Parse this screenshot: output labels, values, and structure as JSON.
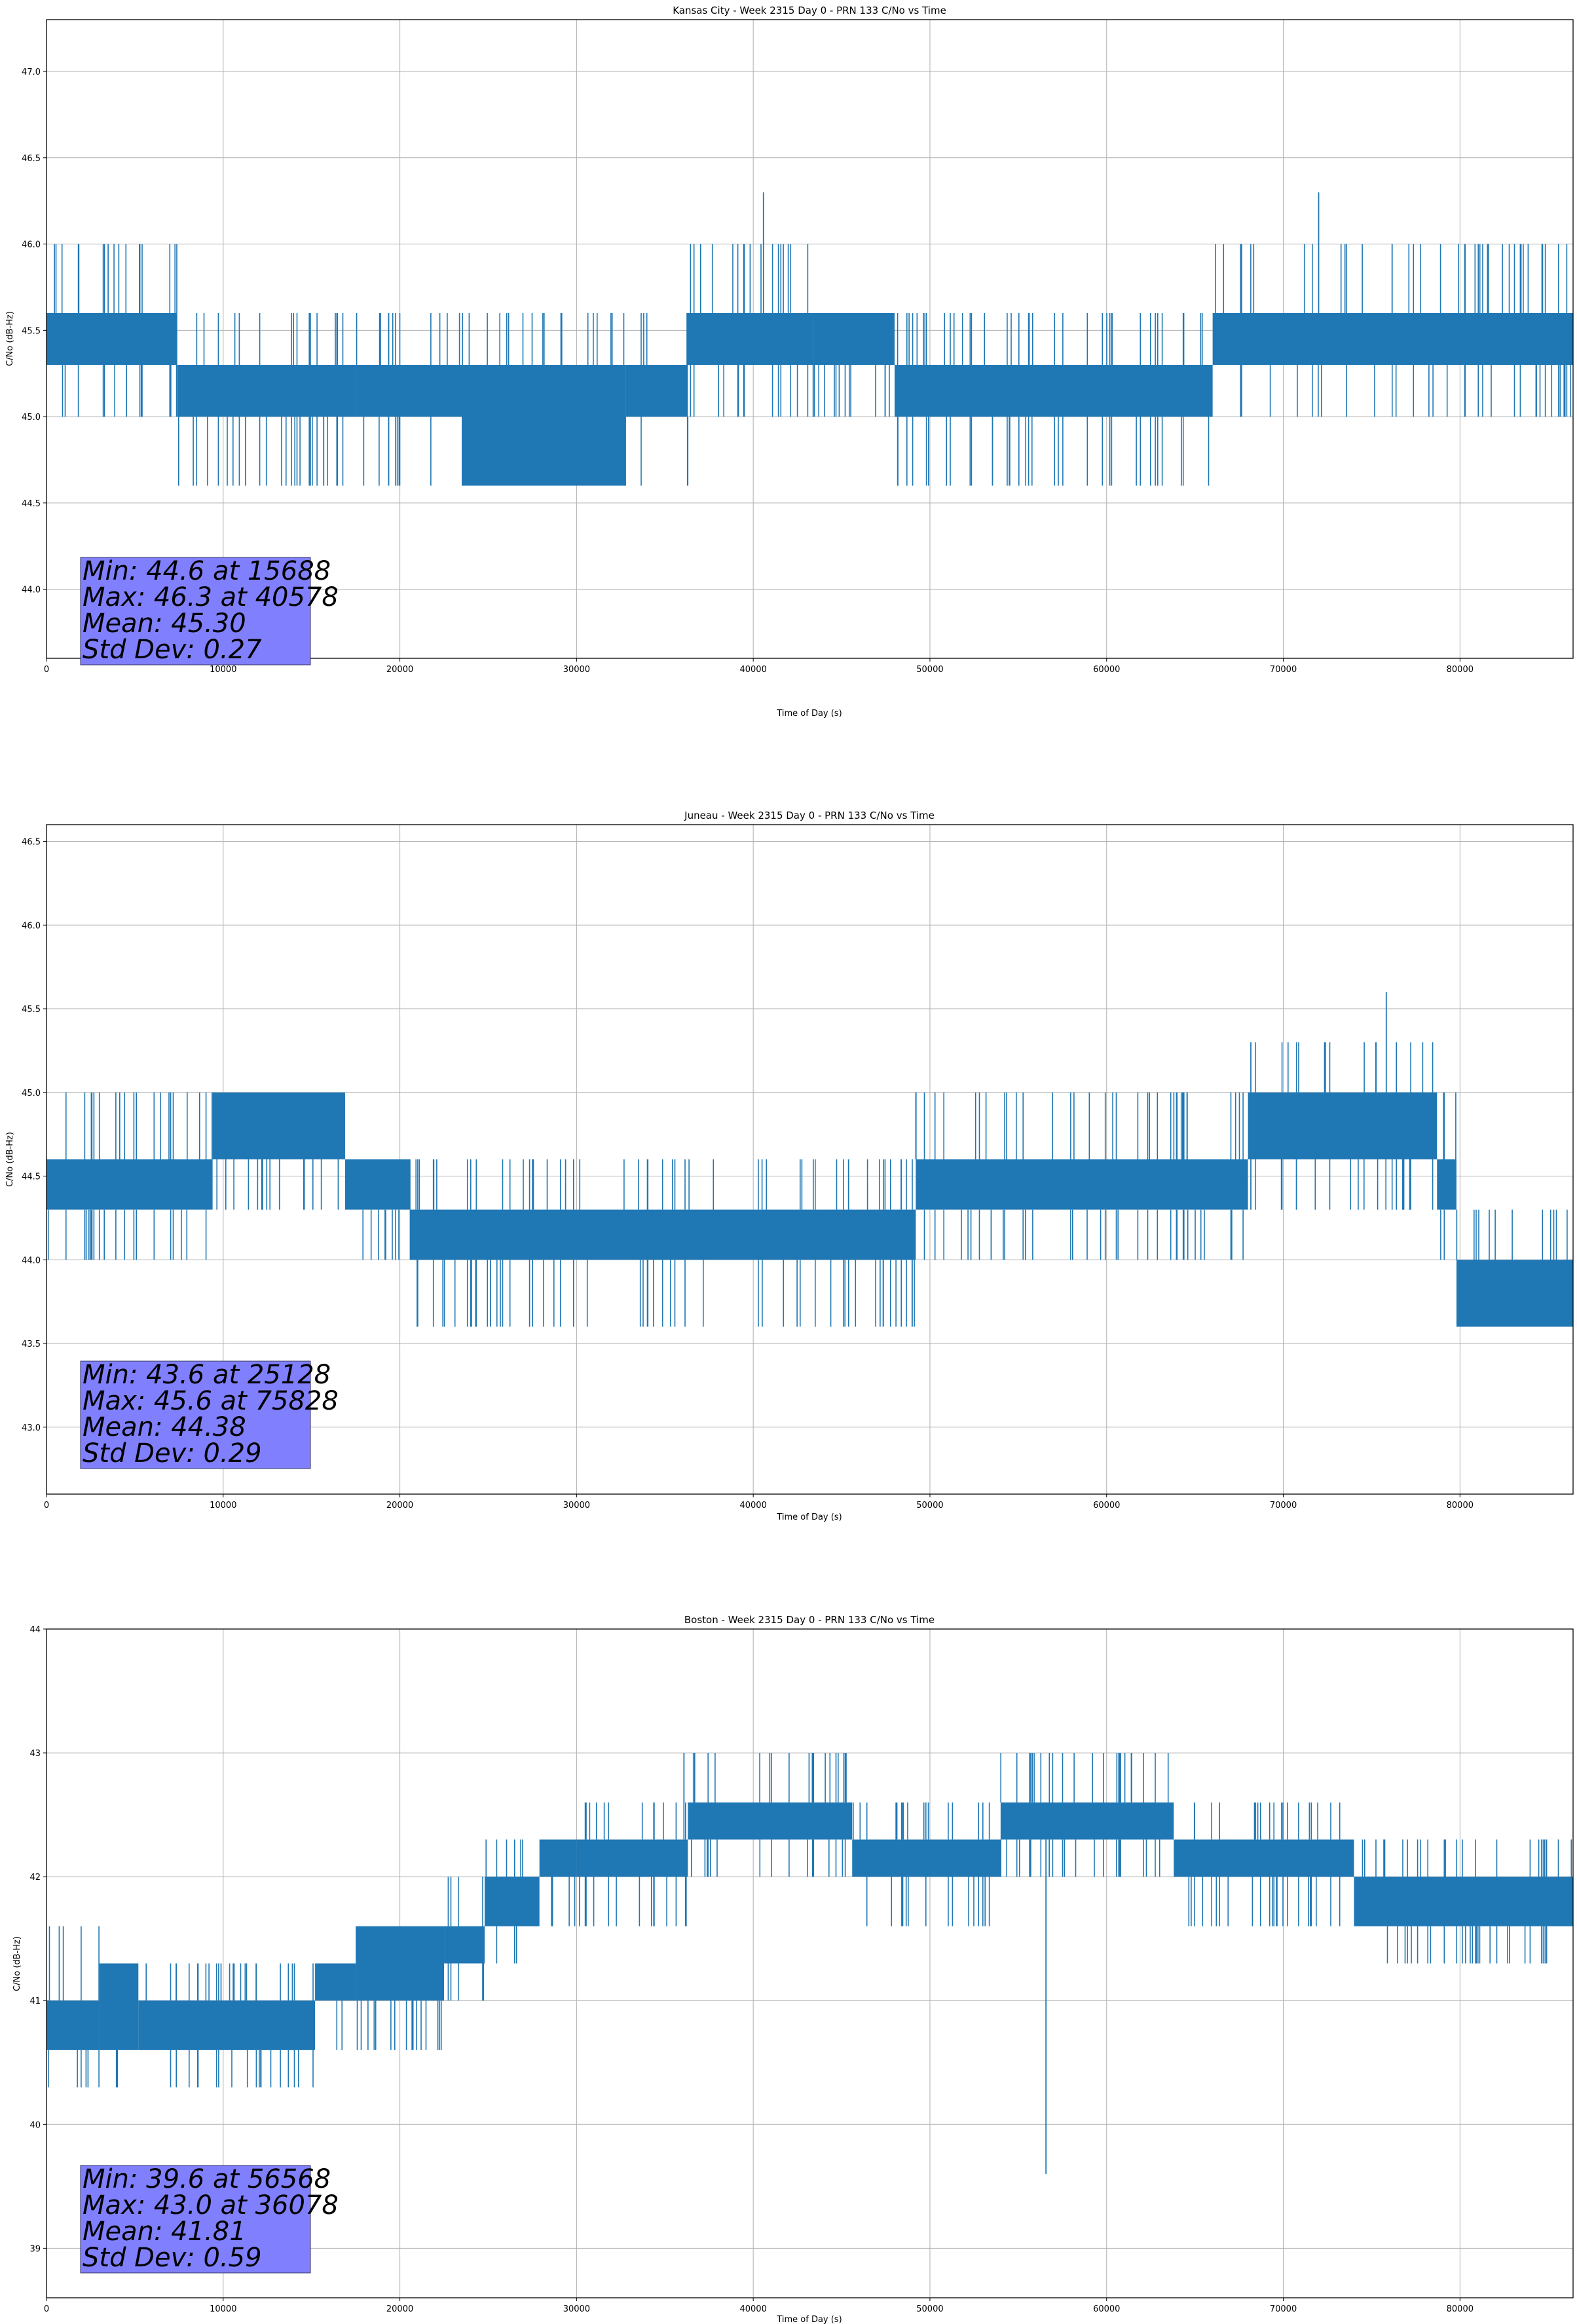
{
  "chart_data": [
    {
      "type": "line",
      "title": "Kansas City - Week 2315 Day 0 - PRN 133 C/No vs Time",
      "xlabel": "Time of Day (s)",
      "ylabel": "C/No (dB-Hz)",
      "xlim": [
        0,
        86400
      ],
      "ylim": [
        43.6,
        47.3
      ],
      "xticks": [
        0,
        10000,
        20000,
        30000,
        40000,
        50000,
        60000,
        70000,
        80000
      ],
      "yticks": [
        44.0,
        44.5,
        45.0,
        45.5,
        46.0,
        46.5,
        47.0
      ],
      "ytick_labels": [
        "44.0",
        "44.5",
        "45.0",
        "45.5",
        "46.0",
        "46.5",
        "47.0"
      ],
      "grid": true,
      "color": "#1f77b4",
      "series": [
        {
          "segments": [
            {
              "x": [
                0,
                7400
              ],
              "levels": [
                45.3,
                45.6
              ],
              "spikes_hi": [
                46.0
              ],
              "spikes_lo": [
                45.0
              ]
            },
            {
              "x": [
                7400,
                17500
              ],
              "levels": [
                45.0,
                45.3
              ],
              "spikes_hi": [
                45.6
              ],
              "spikes_lo": [
                44.6
              ]
            },
            {
              "x": [
                17500,
                23500
              ],
              "levels": [
                45.0,
                45.3
              ],
              "spikes_hi": [
                45.6
              ],
              "spikes_lo": [
                44.6
              ]
            },
            {
              "x": [
                23500,
                32800
              ],
              "levels": [
                44.6,
                45.3
              ],
              "spikes_hi": [
                45.6
              ],
              "spikes_lo": [
                44.6
              ]
            },
            {
              "x": [
                32800,
                36300
              ],
              "levels": [
                45.0,
                45.3
              ],
              "spikes_hi": [
                45.6
              ],
              "spikes_lo": [
                44.6
              ]
            },
            {
              "x": [
                36300,
                43400
              ],
              "levels": [
                45.3,
                45.6
              ],
              "spikes_hi": [
                46.0
              ],
              "spikes_lo": [
                45.0
              ]
            },
            {
              "x": [
                43400,
                48000
              ],
              "levels": [
                45.3,
                45.6
              ],
              "spikes_hi": [
                45.6
              ],
              "spikes_lo": [
                45.0
              ]
            },
            {
              "x": [
                48000,
                66000
              ],
              "levels": [
                45.0,
                45.3
              ],
              "spikes_hi": [
                45.6
              ],
              "spikes_lo": [
                44.6
              ]
            },
            {
              "x": [
                66000,
                86400
              ],
              "levels": [
                45.3,
                45.6
              ],
              "spikes_hi": [
                46.0
              ],
              "spikes_lo": [
                45.0
              ]
            }
          ],
          "extremes": [
            {
              "x": 15688,
              "y": 44.6
            },
            {
              "x": 40578,
              "y": 46.3
            },
            {
              "x": 72000,
              "y": 46.3
            }
          ]
        }
      ],
      "stats": [
        "Min: 44.6 at 15688",
        "Max: 46.3 at 40578",
        "Mean: 45.30",
        "Std Dev: 0.27"
      ]
    },
    {
      "type": "line",
      "title": "Juneau - Week 2315 Day 0 - PRN 133 C/No vs Time",
      "xlabel": "Time of Day (s)",
      "ylabel": "C/No (dB-Hz)",
      "xlim": [
        0,
        86400
      ],
      "ylim": [
        42.6,
        46.6
      ],
      "xticks": [
        0,
        10000,
        20000,
        30000,
        40000,
        50000,
        60000,
        70000,
        80000
      ],
      "yticks": [
        43.0,
        43.5,
        44.0,
        44.5,
        45.0,
        45.5,
        46.0,
        46.5
      ],
      "ytick_labels": [
        "43.0",
        "43.5",
        "44.0",
        "44.5",
        "45.0",
        "45.5",
        "46.0",
        "46.5"
      ],
      "grid": true,
      "color": "#1f77b4",
      "series": [
        {
          "segments": [
            {
              "x": [
                0,
                9400
              ],
              "levels": [
                44.3,
                44.6
              ],
              "spikes_hi": [
                45.0
              ],
              "spikes_lo": [
                44.0
              ]
            },
            {
              "x": [
                9400,
                16900
              ],
              "levels": [
                44.6,
                45.0
              ],
              "spikes_hi": [
                45.0
              ],
              "spikes_lo": [
                44.3
              ]
            },
            {
              "x": [
                16900,
                20600
              ],
              "levels": [
                44.3,
                44.6
              ],
              "spikes_hi": [
                44.6
              ],
              "spikes_lo": [
                44.0
              ]
            },
            {
              "x": [
                20600,
                49200
              ],
              "levels": [
                44.0,
                44.3
              ],
              "spikes_hi": [
                44.6
              ],
              "spikes_lo": [
                43.6
              ]
            },
            {
              "x": [
                49200,
                68000
              ],
              "levels": [
                44.3,
                44.6
              ],
              "spikes_hi": [
                45.0
              ],
              "spikes_lo": [
                44.0
              ]
            },
            {
              "x": [
                68000,
                78700
              ],
              "levels": [
                44.6,
                45.0
              ],
              "spikes_hi": [
                45.3
              ],
              "spikes_lo": [
                44.3
              ]
            },
            {
              "x": [
                78700,
                79800
              ],
              "levels": [
                44.3,
                44.6
              ],
              "spikes_hi": [
                45.0
              ],
              "spikes_lo": [
                44.0
              ]
            },
            {
              "x": [
                79800,
                86400
              ],
              "levels": [
                43.6,
                44.0
              ],
              "spikes_hi": [
                44.3
              ],
              "spikes_lo": [
                43.6
              ]
            }
          ],
          "extremes": [
            {
              "x": 25128,
              "y": 43.6
            },
            {
              "x": 75828,
              "y": 45.6
            }
          ]
        }
      ],
      "stats": [
        "Min: 43.6 at 25128",
        "Max: 45.6 at 75828",
        "Mean: 44.38",
        "Std Dev: 0.29"
      ]
    },
    {
      "type": "line",
      "title": "Boston - Week 2315 Day 0 - PRN 133 C/No vs Time",
      "xlabel": "Time of Day (s)",
      "ylabel": "C/No (dB-Hz)",
      "xlim": [
        0,
        86400
      ],
      "ylim": [
        38.6,
        44.0
      ],
      "xticks": [
        0,
        10000,
        20000,
        30000,
        40000,
        50000,
        60000,
        70000,
        80000
      ],
      "yticks": [
        39,
        40,
        41,
        42,
        43,
        44
      ],
      "ytick_labels": [
        "39",
        "40",
        "41",
        "42",
        "43",
        "44"
      ],
      "grid": true,
      "color": "#1f77b4",
      "series": [
        {
          "segments": [
            {
              "x": [
                0,
                3000
              ],
              "levels": [
                40.6,
                41.0
              ],
              "spikes_hi": [
                41.6
              ],
              "spikes_lo": [
                40.3
              ]
            },
            {
              "x": [
                3000,
                5200
              ],
              "levels": [
                40.6,
                41.3
              ],
              "spikes_hi": [
                41.3
              ],
              "spikes_lo": [
                40.3
              ]
            },
            {
              "x": [
                5200,
                15200
              ],
              "levels": [
                40.6,
                41.0
              ],
              "spikes_hi": [
                41.3
              ],
              "spikes_lo": [
                40.3
              ]
            },
            {
              "x": [
                15200,
                17500
              ],
              "levels": [
                41.0,
                41.3
              ],
              "spikes_hi": [
                41.3
              ],
              "spikes_lo": [
                40.6
              ]
            },
            {
              "x": [
                17500,
                22500
              ],
              "levels": [
                41.0,
                41.6
              ],
              "spikes_hi": [
                41.6
              ],
              "spikes_lo": [
                40.6
              ]
            },
            {
              "x": [
                22500,
                24800
              ],
              "levels": [
                41.3,
                41.6
              ],
              "spikes_hi": [
                42.0
              ],
              "spikes_lo": [
                41.0
              ]
            },
            {
              "x": [
                24800,
                27900
              ],
              "levels": [
                41.6,
                42.0
              ],
              "spikes_hi": [
                42.3
              ],
              "spikes_lo": [
                41.3
              ]
            },
            {
              "x": [
                27900,
                30000
              ],
              "levels": [
                42.0,
                42.3
              ],
              "spikes_hi": [
                42.3
              ],
              "spikes_lo": [
                41.6
              ]
            },
            {
              "x": [
                30000,
                36300
              ],
              "levels": [
                42.0,
                42.3
              ],
              "spikes_hi": [
                42.6
              ],
              "spikes_lo": [
                41.6
              ]
            },
            {
              "x": [
                36300,
                45600
              ],
              "levels": [
                42.3,
                42.6
              ],
              "spikes_hi": [
                43.0
              ],
              "spikes_lo": [
                42.0
              ]
            },
            {
              "x": [
                45600,
                54000
              ],
              "levels": [
                42.0,
                42.3
              ],
              "spikes_hi": [
                42.6
              ],
              "spikes_lo": [
                41.6
              ]
            },
            {
              "x": [
                54000,
                63800
              ],
              "levels": [
                42.3,
                42.6
              ],
              "spikes_hi": [
                43.0
              ],
              "spikes_lo": [
                42.0
              ]
            },
            {
              "x": [
                63800,
                74000
              ],
              "levels": [
                42.0,
                42.3
              ],
              "spikes_hi": [
                42.6
              ],
              "spikes_lo": [
                41.6
              ]
            },
            {
              "x": [
                74000,
                86400
              ],
              "levels": [
                41.6,
                42.0
              ],
              "spikes_hi": [
                42.3
              ],
              "spikes_lo": [
                41.3
              ]
            }
          ],
          "extremes": [
            {
              "x": 56568,
              "y": 39.6
            },
            {
              "x": 36078,
              "y": 43.0
            }
          ]
        }
      ],
      "stats": [
        "Min: 39.6 at 56568",
        "Max: 43.0 at 36078",
        "Mean: 41.81",
        "Std Dev: 0.59"
      ]
    }
  ]
}
